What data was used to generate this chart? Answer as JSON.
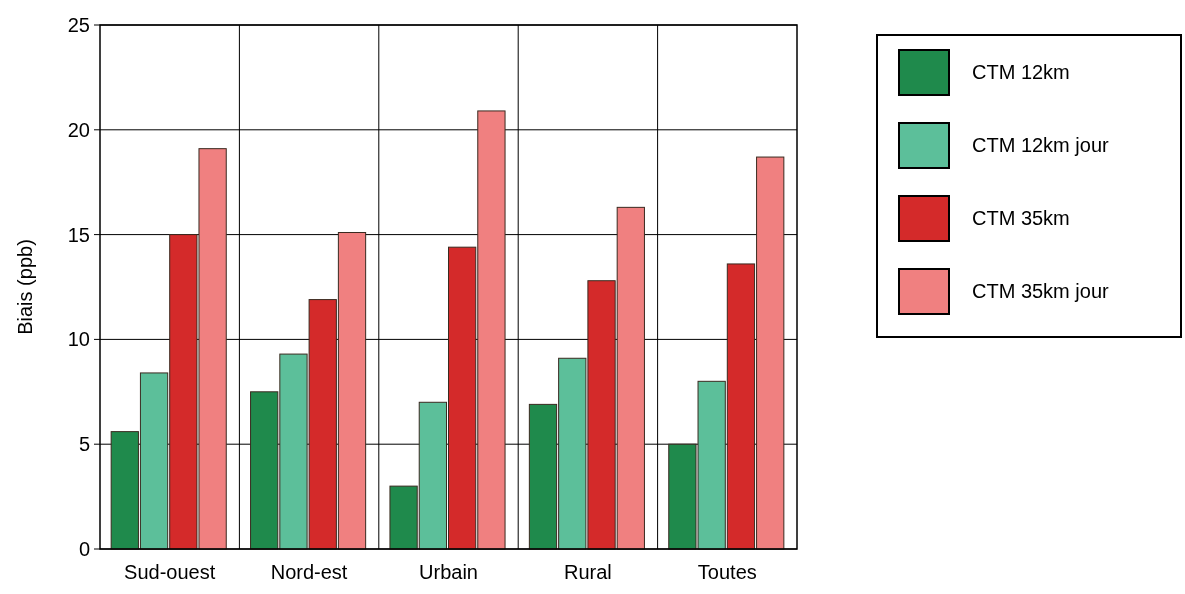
{
  "chart_data": {
    "type": "bar",
    "ylabel": "Biais (ppb)",
    "categories": [
      "Sud-ouest",
      "Nord-est",
      "Urbain",
      "Rural",
      "Toutes"
    ],
    "series": [
      {
        "name": "CTM 12km",
        "color": "#1f8a4c",
        "values": [
          5.6,
          7.5,
          3.0,
          6.9,
          5.0
        ]
      },
      {
        "name": "CTM 12km jour",
        "color": "#5cbf9a",
        "values": [
          8.4,
          9.3,
          7.0,
          9.1,
          8.0
        ]
      },
      {
        "name": "CTM 35km",
        "color": "#d42a2a",
        "values": [
          15.0,
          11.9,
          14.4,
          12.8,
          13.6
        ]
      },
      {
        "name": "CTM 35km jour",
        "color": "#f08080",
        "values": [
          19.1,
          15.1,
          20.9,
          16.3,
          18.7
        ]
      }
    ],
    "ylim": [
      0,
      25
    ],
    "yticks": [
      0,
      5,
      10,
      15,
      20,
      25
    ],
    "grid": true,
    "legend": "top right"
  }
}
